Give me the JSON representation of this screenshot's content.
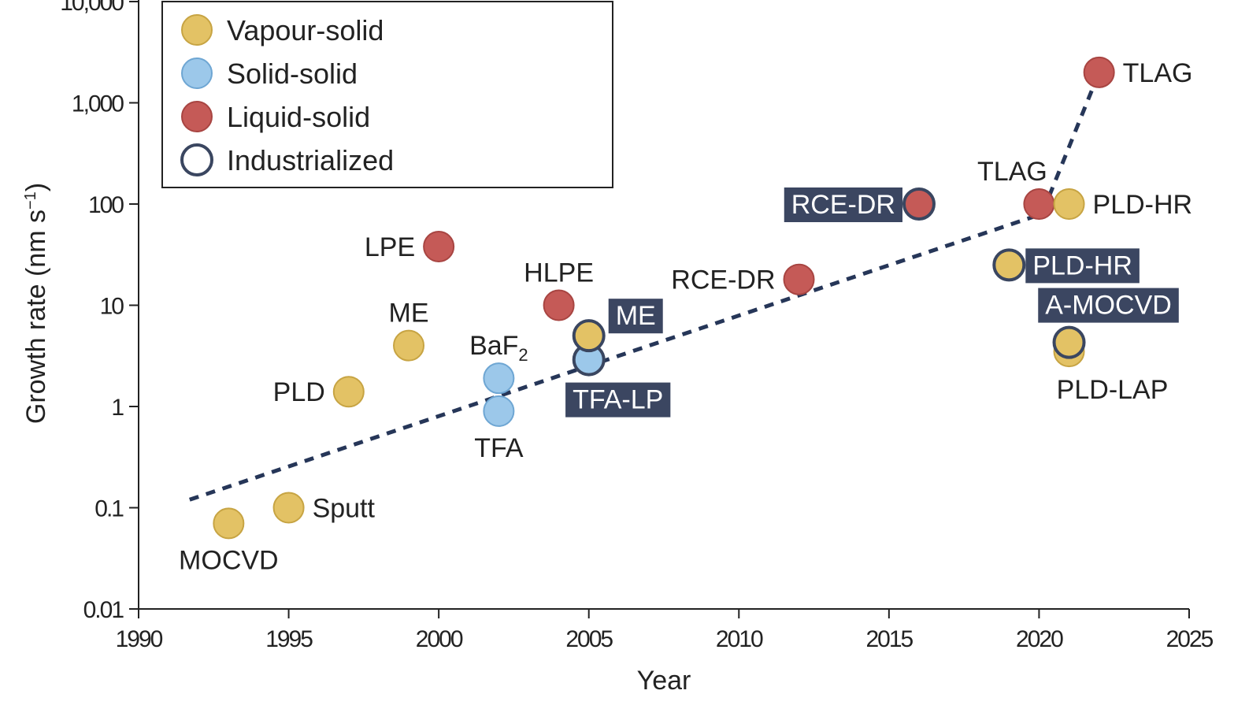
{
  "chart_data": {
    "type": "scatter",
    "xlabel": "Year",
    "ylabel": "Growth rate (nm s",
    "ylabel_sup": "−1",
    "ylabel_close": ")",
    "xlim": [
      1990,
      2025
    ],
    "ylim": [
      0.01,
      10000
    ],
    "yscale": "log",
    "x_ticks": [
      1990,
      1995,
      2000,
      2005,
      2010,
      2015,
      2020,
      2025
    ],
    "x_tick_labels": [
      "1990",
      "1995",
      "2000",
      "2005",
      "2010",
      "2015",
      "2020",
      "2025"
    ],
    "y_ticks": [
      0.01,
      0.1,
      1,
      10,
      100,
      1000,
      10000
    ],
    "y_tick_labels": [
      "0.01",
      "0.1",
      "1",
      "10",
      "100",
      "1,000",
      "10,000"
    ],
    "grid": false,
    "legend": {
      "placement": "top-left",
      "entries": [
        {
          "name": "Vapour-solid",
          "color": "#e3c265",
          "stroke": "#c7a443"
        },
        {
          "name": "Solid-solid",
          "color": "#9cc8ea",
          "stroke": "#6ea6d3"
        },
        {
          "name": "Liquid-solid",
          "color": "#c55a57",
          "stroke": "#a84542"
        },
        {
          "name": "Industrialized",
          "color": "#ffffff",
          "stroke": "#3a4660"
        }
      ]
    },
    "colors": {
      "Vapour-solid": "#e3c265",
      "Solid-solid": "#9cc8ea",
      "Liquid-solid": "#c55a57",
      "industrialized_outline": "#3a4660",
      "label_box": "#3b4661",
      "trend": "#263658"
    },
    "points": [
      {
        "x": 1993,
        "y": 0.07,
        "category": "Vapour-solid",
        "industrialized": false,
        "label": "MOCVD",
        "label_pos": "below",
        "boxed": false
      },
      {
        "x": 1995,
        "y": 0.1,
        "category": "Vapour-solid",
        "industrialized": false,
        "label": "Sputt",
        "label_pos": "right",
        "boxed": false
      },
      {
        "x": 1997,
        "y": 1.4,
        "category": "Vapour-solid",
        "industrialized": false,
        "label": "PLD",
        "label_pos": "left",
        "boxed": false
      },
      {
        "x": 1999,
        "y": 4,
        "category": "Vapour-solid",
        "industrialized": false,
        "label": "ME",
        "label_pos": "above",
        "boxed": false
      },
      {
        "x": 2000,
        "y": 38,
        "category": "Liquid-solid",
        "industrialized": false,
        "label": "LPE",
        "label_pos": "left",
        "boxed": false
      },
      {
        "x": 2002,
        "y": 1.9,
        "category": "Solid-solid",
        "industrialized": false,
        "label": "BaF",
        "label_sub": "2",
        "label_pos": "above",
        "boxed": false
      },
      {
        "x": 2002,
        "y": 0.9,
        "category": "Solid-solid",
        "industrialized": false,
        "label": "TFA",
        "label_pos": "below",
        "boxed": false
      },
      {
        "x": 2004,
        "y": 10,
        "category": "Liquid-solid",
        "industrialized": false,
        "label": "HLPE",
        "label_pos": "above",
        "boxed": false
      },
      {
        "x": 2005,
        "y": 2.9,
        "category": "Solid-solid",
        "industrialized": true,
        "label": "TFA-LP",
        "label_pos": "below-right",
        "boxed": true
      },
      {
        "x": 2005,
        "y": 5,
        "category": "Vapour-solid",
        "industrialized": true,
        "label": "ME",
        "label_pos": "right-up",
        "boxed": true
      },
      {
        "x": 2012,
        "y": 18,
        "category": "Liquid-solid",
        "industrialized": false,
        "label": "RCE-DR",
        "label_pos": "left",
        "boxed": false
      },
      {
        "x": 2016,
        "y": 100,
        "category": "Liquid-solid",
        "industrialized": true,
        "label": "RCE-DR",
        "label_pos": "left",
        "boxed": true
      },
      {
        "x": 2019,
        "y": 25,
        "category": "Vapour-solid",
        "industrialized": true,
        "label": "PLD-HR",
        "label_pos": "right",
        "boxed": true
      },
      {
        "x": 2020,
        "y": 100,
        "category": "Liquid-solid",
        "industrialized": false,
        "label": "TLAG",
        "label_pos": "above-left",
        "boxed": false
      },
      {
        "x": 2021,
        "y": 100,
        "category": "Vapour-solid",
        "industrialized": false,
        "label": "PLD-HR",
        "label_pos": "right",
        "boxed": false
      },
      {
        "x": 2021,
        "y": 3.5,
        "category": "Vapour-solid",
        "industrialized": false,
        "label": "PLD-LAP",
        "label_pos": "below",
        "boxed": false
      },
      {
        "x": 2021,
        "y": 4.3,
        "category": "Vapour-solid",
        "industrialized": true,
        "label": "A-MOCVD",
        "label_pos": "above",
        "boxed": true
      },
      {
        "x": 2022,
        "y": 2000,
        "category": "Liquid-solid",
        "industrialized": false,
        "label": "TLAG",
        "label_pos": "right",
        "boxed": false
      }
    ],
    "trend_line": [
      {
        "x": 1991.7,
        "y": 0.12
      },
      {
        "x": 2020.1,
        "y": 80
      },
      {
        "x": 2022,
        "y": 2000
      }
    ]
  }
}
